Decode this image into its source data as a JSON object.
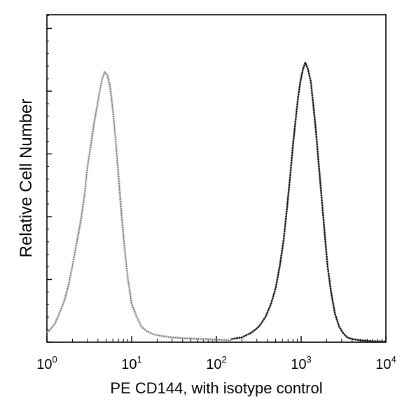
{
  "chart_data": {
    "type": "line",
    "title": "",
    "xlabel": "PE CD144, with isotype control",
    "ylabel": "Relative Cell Number",
    "x_scale": "log",
    "xlim": [
      1,
      10000
    ],
    "ylim": [
      0,
      100
    ],
    "x_ticks": [
      {
        "value": 1,
        "base": "10",
        "exp": "0"
      },
      {
        "value": 10,
        "base": "10",
        "exp": "1"
      },
      {
        "value": 100,
        "base": "10",
        "exp": "2"
      },
      {
        "value": 1000,
        "base": "10",
        "exp": "3"
      },
      {
        "value": 10000,
        "base": "10",
        "exp": "4"
      }
    ],
    "y_ticks_labeled": false,
    "grid": false,
    "legend": "none",
    "series": [
      {
        "style": "light",
        "color": "#8a8a8a",
        "x": [
          1.0,
          1.1,
          1.25,
          1.4,
          1.6,
          1.8,
          2.0,
          2.2,
          2.5,
          2.8,
          3.0,
          3.3,
          3.6,
          3.9,
          4.2,
          4.5,
          4.8,
          5.2,
          5.6,
          6.0,
          6.5,
          7.0,
          7.6,
          8.3,
          9.0,
          10.0,
          11.5,
          13.0,
          15.0,
          18.0,
          22.0,
          30.0,
          45.0,
          70.0,
          100.0,
          150.0
        ],
        "y": [
          3,
          4,
          6,
          9,
          13,
          18,
          24,
          30,
          38,
          47,
          55,
          62,
          69,
          74,
          79,
          83,
          85,
          84,
          80,
          73,
          63,
          52,
          40,
          29,
          20,
          12,
          8,
          5,
          3.5,
          2.5,
          2,
          1.5,
          1.2,
          1,
          0.8,
          0.6
        ]
      },
      {
        "style": "dark",
        "color": "#1a1a1a",
        "x": [
          150,
          200,
          260,
          320,
          380,
          440,
          500,
          560,
          620,
          680,
          740,
          800,
          860,
          920,
          980,
          1050,
          1120,
          1200,
          1300,
          1400,
          1500,
          1600,
          1750,
          1900,
          2050,
          2250,
          2500,
          2800,
          3100,
          3500,
          4000,
          5000,
          7000,
          10000
        ],
        "y": [
          1,
          1.5,
          3,
          5,
          8,
          12,
          17,
          24,
          32,
          42,
          52,
          62,
          70,
          77,
          82,
          86,
          88,
          86,
          82,
          74,
          66,
          57,
          45,
          34,
          24,
          16,
          9,
          5,
          3,
          1.5,
          1,
          0.6,
          0.3,
          0.2
        ]
      }
    ]
  }
}
